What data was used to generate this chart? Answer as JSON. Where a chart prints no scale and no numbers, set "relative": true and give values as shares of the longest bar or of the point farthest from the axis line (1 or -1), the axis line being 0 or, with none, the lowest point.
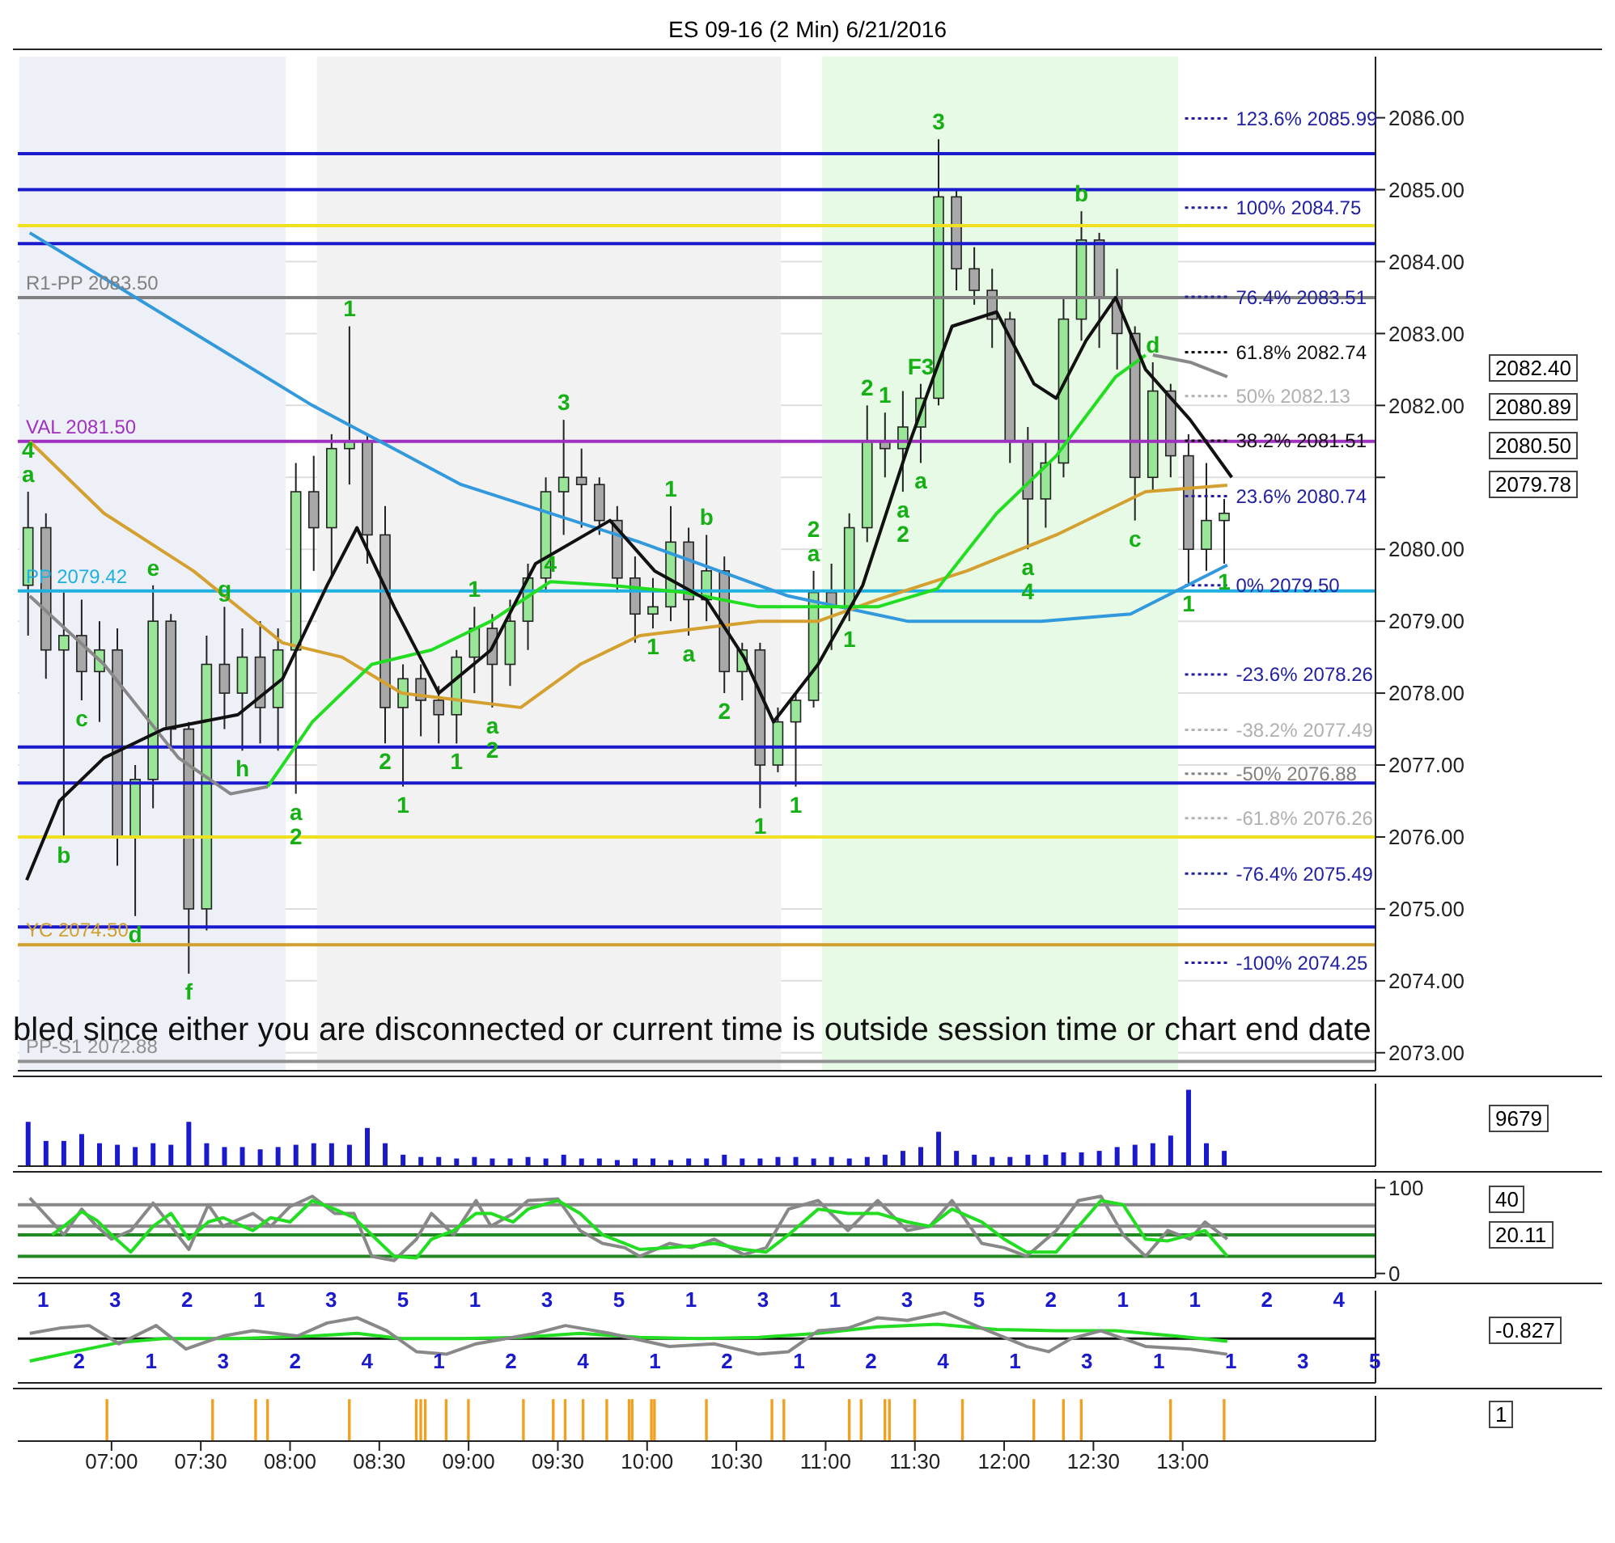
{
  "chart_data": [
    {
      "type": "candlestick",
      "title": "ES 09-16 (2 Min)  6/21/2016",
      "tick_labels": "y",
      "grid": "y",
      "xlim": [
        6.475,
        14.08
      ],
      "ylim": [
        2072.75,
        2086.85
      ],
      "yticks": [
        {
          "value": 2073,
          "label": "2073.00"
        },
        {
          "value": 2074,
          "label": "2074.00"
        },
        {
          "value": 2075,
          "label": "2075.00"
        },
        {
          "value": 2076,
          "label": "2076.00"
        },
        {
          "value": 2077,
          "label": "2077.00"
        },
        {
          "value": 2078,
          "label": "2078.00"
        },
        {
          "value": 2079,
          "label": "2079.00"
        },
        {
          "value": 2080,
          "label": "2080.00"
        },
        {
          "value": 2081,
          "label": null
        },
        {
          "value": 2082,
          "label": "2082.00"
        },
        {
          "value": 2083,
          "label": "2083.00"
        },
        {
          "value": 2084,
          "label": "2084.00"
        },
        {
          "value": 2085,
          "label": "2085.00"
        },
        {
          "value": 2086,
          "label": "2086.00"
        }
      ],
      "x": [
        6.533,
        6.633,
        6.733,
        6.833,
        6.933,
        7.033,
        7.133,
        7.233,
        7.333,
        7.433,
        7.533,
        7.633,
        7.733,
        7.833,
        7.933,
        8.033,
        8.133,
        8.233,
        8.333,
        8.433,
        8.533,
        8.633,
        8.733,
        8.833,
        8.933,
        9.033,
        9.133,
        9.233,
        9.333,
        9.433,
        9.533,
        9.633,
        9.733,
        9.833,
        9.933,
        10.033,
        10.133,
        10.233,
        10.333,
        10.433,
        10.533,
        10.633,
        10.733,
        10.833,
        10.933,
        11.033,
        11.133,
        11.233,
        11.333,
        11.433,
        11.533,
        11.633,
        11.733,
        11.833,
        11.933,
        12.033,
        12.133,
        12.233,
        12.333,
        12.433,
        12.533,
        12.633,
        12.733,
        12.833,
        12.933,
        13.033,
        13.133,
        13.233
      ],
      "ohlc": [
        [
          2079.5,
          2080.8,
          2078.8,
          2080.3
        ],
        [
          2080.3,
          2080.5,
          2078.2,
          2078.6
        ],
        [
          2078.6,
          2079.4,
          2076.0,
          2078.8
        ],
        [
          2078.8,
          2079.3,
          2077.9,
          2078.3
        ],
        [
          2078.3,
          2079.0,
          2077.6,
          2078.6
        ],
        [
          2078.6,
          2078.9,
          2075.6,
          2076.0
        ],
        [
          2076.0,
          2077.0,
          2074.9,
          2076.8
        ],
        [
          2076.8,
          2079.5,
          2076.4,
          2079.0
        ],
        [
          2079.0,
          2079.1,
          2077.2,
          2077.5
        ],
        [
          2077.5,
          2077.6,
          2074.1,
          2075.0
        ],
        [
          2075.0,
          2078.8,
          2074.7,
          2078.4
        ],
        [
          2078.4,
          2079.2,
          2077.5,
          2078.0
        ],
        [
          2078.0,
          2078.9,
          2077.2,
          2078.5
        ],
        [
          2078.5,
          2079.0,
          2077.3,
          2077.8
        ],
        [
          2077.8,
          2078.9,
          2077.2,
          2078.6
        ],
        [
          2078.6,
          2081.2,
          2076.6,
          2080.8
        ],
        [
          2080.8,
          2081.3,
          2079.7,
          2080.3
        ],
        [
          2080.3,
          2081.6,
          2079.6,
          2081.4
        ],
        [
          2081.4,
          2083.1,
          2080.9,
          2081.5
        ],
        [
          2081.5,
          2081.6,
          2079.8,
          2080.2
        ],
        [
          2080.2,
          2080.6,
          2077.3,
          2077.8
        ],
        [
          2077.8,
          2078.4,
          2076.7,
          2078.2
        ],
        [
          2078.2,
          2078.4,
          2077.4,
          2077.9
        ],
        [
          2077.9,
          2078.1,
          2077.3,
          2077.7
        ],
        [
          2077.7,
          2078.6,
          2077.3,
          2078.5
        ],
        [
          2078.5,
          2079.2,
          2078.0,
          2078.9
        ],
        [
          2078.9,
          2079.1,
          2077.8,
          2078.4
        ],
        [
          2078.4,
          2079.3,
          2078.1,
          2079.0
        ],
        [
          2079.0,
          2079.8,
          2078.6,
          2079.6
        ],
        [
          2079.6,
          2081.0,
          2079.4,
          2080.8
        ],
        [
          2080.8,
          2081.8,
          2080.2,
          2081.0
        ],
        [
          2081.0,
          2081.4,
          2080.3,
          2080.9
        ],
        [
          2080.9,
          2081.0,
          2080.2,
          2080.4
        ],
        [
          2080.4,
          2080.6,
          2079.4,
          2079.6
        ],
        [
          2079.6,
          2079.9,
          2078.7,
          2079.1
        ],
        [
          2079.1,
          2079.6,
          2078.9,
          2079.2
        ],
        [
          2079.2,
          2080.6,
          2079.0,
          2080.1
        ],
        [
          2080.1,
          2080.3,
          2078.8,
          2079.3
        ],
        [
          2079.3,
          2080.2,
          2079.0,
          2079.7
        ],
        [
          2079.7,
          2079.9,
          2078.0,
          2078.3
        ],
        [
          2078.3,
          2078.7,
          2077.9,
          2078.6
        ],
        [
          2078.6,
          2078.7,
          2076.4,
          2077.0
        ],
        [
          2077.0,
          2077.8,
          2076.9,
          2077.6
        ],
        [
          2077.6,
          2078.0,
          2076.7,
          2077.9
        ],
        [
          2077.9,
          2079.7,
          2077.8,
          2079.4
        ],
        [
          2079.4,
          2079.8,
          2078.6,
          2079.2
        ],
        [
          2079.2,
          2080.5,
          2079.0,
          2080.3
        ],
        [
          2080.3,
          2082.0,
          2080.1,
          2081.5
        ],
        [
          2081.5,
          2081.9,
          2081.0,
          2081.4
        ],
        [
          2081.4,
          2082.2,
          2080.8,
          2081.7
        ],
        [
          2081.7,
          2082.3,
          2081.2,
          2082.1
        ],
        [
          2082.1,
          2085.7,
          2082.0,
          2084.9
        ],
        [
          2084.9,
          2085.0,
          2083.6,
          2083.9
        ],
        [
          2083.9,
          2084.2,
          2083.4,
          2083.6
        ],
        [
          2083.6,
          2083.9,
          2082.8,
          2083.2
        ],
        [
          2083.2,
          2083.3,
          2081.2,
          2081.5
        ],
        [
          2081.5,
          2081.7,
          2080.0,
          2080.7
        ],
        [
          2080.7,
          2081.5,
          2080.3,
          2081.2
        ],
        [
          2081.2,
          2083.5,
          2081.0,
          2083.2
        ],
        [
          2083.2,
          2084.7,
          2082.9,
          2084.3
        ],
        [
          2084.3,
          2084.4,
          2082.8,
          2083.5
        ],
        [
          2083.5,
          2083.9,
          2082.5,
          2083.0
        ],
        [
          2083.0,
          2083.1,
          2080.4,
          2081.0
        ],
        [
          2081.0,
          2082.6,
          2080.8,
          2082.2
        ],
        [
          2082.2,
          2082.3,
          2081.0,
          2081.3
        ],
        [
          2081.3,
          2081.6,
          2079.5,
          2080.0
        ],
        [
          2080.0,
          2081.2,
          2079.7,
          2080.4
        ],
        [
          2080.4,
          2080.7,
          2079.8,
          2080.5
        ]
      ],
      "series": [
        {
          "type": "line",
          "color": "#3399dd",
          "x": [
            6.542,
            8.125,
            8.958,
            9.958,
            10.792,
            11.458,
            12.208,
            12.708,
            13.25
          ],
          "values": [
            2084.4,
            2082.0,
            2080.9,
            2080.1,
            2079.35,
            2079.0,
            2079.0,
            2079.1,
            2079.78
          ]
        },
        {
          "type": "line",
          "color": "#d4a030",
          "x": [
            6.542,
            6.958,
            7.458,
            7.958,
            8.292,
            8.625,
            8.958,
            9.292,
            9.625,
            9.958,
            10.292,
            10.625,
            10.958,
            11.292,
            11.792,
            12.292,
            12.792,
            13.25
          ],
          "values": [
            2081.5,
            2080.5,
            2079.7,
            2078.7,
            2078.5,
            2078.0,
            2077.9,
            2077.8,
            2078.4,
            2078.8,
            2078.9,
            2079.0,
            2079.0,
            2079.3,
            2079.7,
            2080.2,
            2080.8,
            2080.89
          ]
        },
        {
          "type": "line",
          "color": "#888888",
          "x": [
            6.542,
            6.958,
            7.375,
            7.667,
            7.875
          ],
          "values": [
            2079.35,
            2078.4,
            2077.1,
            2076.6,
            2076.7
          ]
        },
        {
          "type": "line",
          "color": "#888888",
          "x": [
            12.833,
            13.042,
            13.25
          ],
          "values": [
            2082.7,
            2082.6,
            2082.4
          ]
        },
        {
          "type": "line",
          "color": "#22dd22",
          "x": [
            7.875,
            8.125,
            8.458,
            8.792,
            9.125,
            9.458,
            9.792,
            10.208,
            10.625,
            10.958,
            11.292,
            11.625,
            11.958,
            12.292,
            12.625,
            12.792
          ],
          "values": [
            2076.7,
            2077.6,
            2078.4,
            2078.6,
            2079.0,
            2079.55,
            2079.5,
            2079.4,
            2079.2,
            2079.2,
            2079.2,
            2079.45,
            2080.5,
            2081.3,
            2082.4,
            2082.7
          ]
        },
        {
          "type": "line",
          "color": "#111111",
          "x": [
            6.525,
            6.708,
            6.958,
            7.292,
            7.708,
            7.958,
            8.208,
            8.375,
            8.583,
            8.833,
            9.125,
            9.375,
            9.792,
            10.042,
            10.333,
            10.542,
            10.708,
            10.958,
            11.208,
            11.458,
            11.708,
            11.958,
            12.167,
            12.292,
            12.458,
            12.625,
            12.792,
            13.042,
            13.275
          ],
          "values": [
            2075.4,
            2076.5,
            2077.1,
            2077.5,
            2077.7,
            2078.2,
            2079.5,
            2080.3,
            2079.2,
            2078.0,
            2078.6,
            2079.8,
            2080.4,
            2079.7,
            2079.3,
            2078.5,
            2077.6,
            2078.4,
            2079.5,
            2081.4,
            2083.1,
            2083.3,
            2082.3,
            2082.1,
            2082.9,
            2083.5,
            2082.5,
            2081.8,
            2081.0
          ]
        }
      ],
      "bands": [
        {
          "axis": "x",
          "from": 6.483,
          "to": 7.975,
          "color": "#eef0f8"
        },
        {
          "axis": "x",
          "from": 8.15,
          "to": 10.75,
          "color": "#f2f2f2"
        },
        {
          "axis": "x",
          "from": 10.98,
          "to": 12.975,
          "color": "#e6fae6"
        }
      ],
      "ref_lines": [
        {
          "axis": "y",
          "value": 2085.5,
          "color": "#1a1acc"
        },
        {
          "axis": "y",
          "value": 2085.0,
          "color": "#1a1acc"
        },
        {
          "axis": "y",
          "value": 2084.5,
          "color": "#f0e020"
        },
        {
          "axis": "y",
          "value": 2084.25,
          "color": "#1a1acc"
        },
        {
          "axis": "y",
          "value": 2083.5,
          "label": "R1-PP 2083.50",
          "color": "#808080"
        },
        {
          "axis": "y",
          "value": 2081.5,
          "label": "VAL 2081.50",
          "color": "#a030c0"
        },
        {
          "axis": "y",
          "value": 2079.42,
          "label": "PP 2079.42",
          "color": "#20b0e0"
        },
        {
          "axis": "y",
          "value": 2077.25,
          "color": "#1a1acc"
        },
        {
          "axis": "y",
          "value": 2076.75,
          "color": "#1a1acc"
        },
        {
          "axis": "y",
          "value": 2076.0,
          "color": "#f0e020"
        },
        {
          "axis": "y",
          "value": 2074.75,
          "color": "#1a1acc"
        },
        {
          "axis": "y",
          "value": 2074.5,
          "label": "YC 2074.50",
          "color": "#d0a030"
        },
        {
          "axis": "y",
          "value": 2072.88,
          "label": "PP-S1 2072.88",
          "color": "#909090"
        },
        {
          "axis": "y",
          "value": 2085.99,
          "label": "123.6%  2085.99",
          "color": "#2020a0",
          "line_style": "dotted"
        },
        {
          "axis": "y",
          "value": 2084.75,
          "label": "100%  2084.75",
          "color": "#2020a0",
          "line_style": "dotted"
        },
        {
          "axis": "y",
          "value": 2083.51,
          "label": "76.4%  2083.51",
          "color": "#2020a0",
          "line_style": "dotted"
        },
        {
          "axis": "y",
          "value": 2082.74,
          "label": "61.8%  2082.74",
          "color": "#111111",
          "line_style": "dotted"
        },
        {
          "axis": "y",
          "value": 2082.13,
          "label": "50%  2082.13",
          "color": "#b0b0b0",
          "line_style": "dotted"
        },
        {
          "axis": "y",
          "value": 2081.51,
          "label": "38.2%  2081.51",
          "color": "#111111",
          "line_style": "dotted"
        },
        {
          "axis": "y",
          "value": 2080.74,
          "label": "23.6%  2080.74",
          "color": "#2020a0",
          "line_style": "dotted"
        },
        {
          "axis": "y",
          "value": 2079.5,
          "label": "0%  2079.50",
          "color": "#2020a0",
          "line_style": "dotted"
        },
        {
          "axis": "y",
          "value": 2078.26,
          "label": "-23.6%  2078.26",
          "color": "#2020a0",
          "line_style": "dotted"
        },
        {
          "axis": "y",
          "value": 2077.49,
          "label": "-38.2%  2077.49",
          "color": "#b0b0b0",
          "line_style": "dotted"
        },
        {
          "axis": "y",
          "value": 2076.88,
          "label": "-50%  2076.88",
          "color": "#808080",
          "line_style": "dotted"
        },
        {
          "axis": "y",
          "value": 2076.26,
          "label": "-61.8%  2076.26",
          "color": "#b0b0b0",
          "line_style": "dotted"
        },
        {
          "axis": "y",
          "value": 2075.49,
          "label": "-76.4%  2075.49",
          "color": "#2020a0",
          "line_style": "dotted"
        },
        {
          "axis": "y",
          "value": 2074.25,
          "label": "-100%  2074.25",
          "color": "#2020a0",
          "line_style": "dotted"
        }
      ],
      "annotations": [
        "bled since either you are disconnected or current time is outside session time or chart end date",
        "2082.40",
        "2080.89",
        "2080.50",
        "2079.78",
        {
          "text": "a",
          "x": 6.533,
          "y": 2080.8
        },
        {
          "text": "4",
          "x": 6.533,
          "y": 2080.8
        },
        {
          "text": "b",
          "x": 6.733,
          "y": 2076.0
        },
        {
          "text": "c",
          "x": 6.833,
          "y": 2077.9
        },
        {
          "text": "d",
          "x": 7.133,
          "y": 2074.9
        },
        {
          "text": "e",
          "x": 7.233,
          "y": 2079.5
        },
        {
          "text": "f",
          "x": 7.433,
          "y": 2074.1
        },
        {
          "text": "g",
          "x": 7.633,
          "y": 2079.2
        },
        {
          "text": "h",
          "x": 7.733,
          "y": 2077.2
        },
        {
          "text": "a",
          "x": 8.033,
          "y": 2076.6
        },
        {
          "text": "2",
          "x": 8.033,
          "y": 2076.6
        },
        {
          "text": "1",
          "x": 8.333,
          "y": 2083.1
        },
        {
          "text": "2",
          "x": 8.533,
          "y": 2077.3
        },
        {
          "text": "1",
          "x": 8.633,
          "y": 2076.7
        },
        {
          "text": "1",
          "x": 8.933,
          "y": 2077.3
        },
        {
          "text": "1",
          "x": 9.033,
          "y": 2079.2
        },
        {
          "text": "a",
          "x": 9.133,
          "y": 2077.8
        },
        {
          "text": "2",
          "x": 9.133,
          "y": 2077.8
        },
        {
          "text": "3",
          "x": 9.533,
          "y": 2081.8
        },
        {
          "text": "4",
          "x": 9.458,
          "y": 2079.55
        },
        {
          "text": "1",
          "x": 10.033,
          "y": 2078.9
        },
        {
          "text": "1",
          "x": 10.133,
          "y": 2080.6
        },
        {
          "text": "a",
          "x": 10.233,
          "y": 2078.8
        },
        {
          "text": "b",
          "x": 10.333,
          "y": 2080.2
        },
        {
          "text": "2",
          "x": 10.433,
          "y": 2078.0
        },
        {
          "text": "1",
          "x": 10.633,
          "y": 2076.4
        },
        {
          "text": "1",
          "x": 10.833,
          "y": 2076.7
        },
        {
          "text": "a",
          "x": 10.933,
          "y": 2079.7
        },
        {
          "text": "2",
          "x": 10.933,
          "y": 2079.7
        },
        {
          "text": "1",
          "x": 11.133,
          "y": 2079.0
        },
        {
          "text": "2",
          "x": 11.233,
          "y": 2082.0
        },
        {
          "text": "1",
          "x": 11.333,
          "y": 2081.9
        },
        {
          "text": "a",
          "x": 11.433,
          "y": 2080.8
        },
        {
          "text": "2",
          "x": 11.433,
          "y": 2080.8
        },
        {
          "text": "F3",
          "x": 11.533,
          "y": 2082.3
        },
        {
          "text": "a",
          "x": 11.533,
          "y": 2081.2
        },
        {
          "text": "3",
          "x": 11.633,
          "y": 2085.7
        },
        {
          "text": "a",
          "x": 12.133,
          "y": 2080.0
        },
        {
          "text": "4",
          "x": 12.133,
          "y": 2080.0
        },
        {
          "text": "b",
          "x": 12.433,
          "y": 2084.7
        },
        {
          "text": "c",
          "x": 12.733,
          "y": 2080.4
        },
        {
          "text": "d",
          "x": 12.833,
          "y": 2082.6
        },
        {
          "text": "1",
          "x": 13.033,
          "y": 2079.5
        },
        {
          "text": "1",
          "x": 13.233,
          "y": 2079.8
        }
      ]
    },
    {
      "type": "bar",
      "relative": true,
      "tick_labels": false,
      "xlim": [
        6.475,
        14.08
      ],
      "color": "#1a1acc",
      "x": [
        6.533,
        6.633,
        6.733,
        6.833,
        6.933,
        7.033,
        7.133,
        7.233,
        7.333,
        7.433,
        7.533,
        7.633,
        7.733,
        7.833,
        7.933,
        8.033,
        8.133,
        8.233,
        8.333,
        8.433,
        8.533,
        8.633,
        8.733,
        8.833,
        8.933,
        9.033,
        9.133,
        9.233,
        9.333,
        9.433,
        9.533,
        9.633,
        9.733,
        9.833,
        9.933,
        10.033,
        10.133,
        10.233,
        10.333,
        10.433,
        10.533,
        10.633,
        10.733,
        10.833,
        10.933,
        11.033,
        11.133,
        11.233,
        11.333,
        11.433,
        11.533,
        11.633,
        11.733,
        11.833,
        11.933,
        12.033,
        12.133,
        12.233,
        12.333,
        12.433,
        12.533,
        12.633,
        12.733,
        12.833,
        12.933,
        13.033,
        13.133,
        13.233
      ],
      "values": [
        0.58,
        0.33,
        0.33,
        0.42,
        0.3,
        0.28,
        0.25,
        0.3,
        0.28,
        0.58,
        0.3,
        0.25,
        0.25,
        0.22,
        0.25,
        0.28,
        0.3,
        0.3,
        0.28,
        0.5,
        0.3,
        0.15,
        0.12,
        0.12,
        0.1,
        0.12,
        0.1,
        0.1,
        0.12,
        0.1,
        0.15,
        0.1,
        0.1,
        0.08,
        0.1,
        0.1,
        0.08,
        0.1,
        0.1,
        0.15,
        0.1,
        0.1,
        0.12,
        0.12,
        0.1,
        0.12,
        0.1,
        0.12,
        0.15,
        0.2,
        0.25,
        0.45,
        0.2,
        0.15,
        0.12,
        0.12,
        0.15,
        0.15,
        0.18,
        0.18,
        0.2,
        0.25,
        0.28,
        0.3,
        0.4,
        1.0,
        0.3,
        0.2
      ],
      "annotations": [
        "9679"
      ]
    },
    {
      "type": "line",
      "tick_labels": "y",
      "xlim": [
        6.475,
        14.08
      ],
      "ylim": [
        -5,
        110
      ],
      "yticks": [
        0,
        100
      ],
      "series": [
        {
          "color": "#888888",
          "x": [
            6.542,
            6.667,
            6.733,
            6.833,
            6.917,
            7.0,
            7.108,
            7.233,
            7.333,
            7.433,
            7.542,
            7.625,
            7.792,
            7.892,
            8.0,
            8.125,
            8.25,
            8.358,
            8.458,
            8.583,
            8.708,
            8.792,
            8.917,
            9.042,
            9.125,
            9.25,
            9.333,
            9.5,
            9.625,
            9.75,
            9.875,
            9.958,
            10.125,
            10.25,
            10.375,
            10.542,
            10.667,
            10.792,
            10.958,
            11.125,
            11.292,
            11.458,
            11.583,
            11.708,
            11.875,
            12.0,
            12.125,
            12.292,
            12.417,
            12.542,
            12.667,
            12.792,
            12.917,
            13.042,
            13.125,
            13.25
          ],
          "values": [
            88,
            60,
            45,
            75,
            55,
            40,
            50,
            82,
            55,
            28,
            80,
            55,
            70,
            55,
            78,
            90,
            70,
            70,
            20,
            15,
            40,
            70,
            45,
            85,
            55,
            70,
            85,
            87,
            50,
            35,
            30,
            20,
            35,
            30,
            40,
            22,
            30,
            75,
            85,
            50,
            85,
            50,
            55,
            85,
            35,
            30,
            20,
            50,
            85,
            90,
            45,
            20,
            50,
            40,
            60,
            40
          ]
        },
        {
          "color": "#22dd22",
          "x": [
            6.667,
            6.733,
            6.833,
            6.917,
            7.0,
            7.108,
            7.233,
            7.333,
            7.433,
            7.542,
            7.625,
            7.792,
            7.892,
            8.0,
            8.125,
            8.25,
            8.358,
            8.458,
            8.583,
            8.708,
            8.792,
            8.917,
            9.042,
            9.125,
            9.25,
            9.333,
            9.5,
            9.625,
            9.75,
            9.875,
            9.958,
            10.125,
            10.25,
            10.375,
            10.542,
            10.667,
            10.792,
            10.958,
            11.125,
            11.292,
            11.458,
            11.583,
            11.708,
            11.875,
            12.0,
            12.125,
            12.292,
            12.417,
            12.542,
            12.667,
            12.792,
            12.917,
            13.042,
            13.125,
            13.25
          ],
          "values": [
            45,
            55,
            72,
            62,
            45,
            25,
            55,
            70,
            40,
            60,
            65,
            50,
            65,
            60,
            85,
            75,
            65,
            45,
            20,
            18,
            40,
            50,
            70,
            70,
            60,
            75,
            85,
            70,
            45,
            35,
            28,
            30,
            32,
            35,
            28,
            25,
            45,
            75,
            70,
            70,
            60,
            55,
            75,
            60,
            40,
            25,
            25,
            55,
            85,
            80,
            40,
            38,
            45,
            50,
            20.11
          ]
        }
      ],
      "ref_lines": [
        {
          "axis": "y",
          "value": 80,
          "color": "#888888"
        },
        {
          "axis": "y",
          "value": 55,
          "color": "#888888"
        },
        {
          "axis": "y",
          "value": 45,
          "color": "#228822"
        },
        {
          "axis": "y",
          "value": 20,
          "color": "#228822"
        }
      ],
      "annotations": [
        "40",
        "20.11"
      ]
    },
    {
      "type": "line",
      "relative": true,
      "tick_labels": false,
      "xlim": [
        6.475,
        14.08
      ],
      "series": [
        {
          "color": "#22dd22",
          "x": [
            6.542,
            6.792,
            7.042,
            7.292,
            7.708,
            8.125,
            8.375,
            8.625,
            8.958,
            9.292,
            9.625,
            9.958,
            10.292,
            10.625,
            10.958,
            11.292,
            11.625,
            11.958,
            12.292,
            12.625,
            12.958,
            13.25
          ],
          "values": [
            -0.86,
            -0.5,
            -0.15,
            0,
            0,
            0.1,
            0.2,
            0,
            0,
            0.05,
            0.2,
            0.05,
            0,
            0.05,
            0.2,
            0.45,
            0.55,
            0.35,
            0.3,
            0.3,
            0.1,
            -0.1
          ]
        },
        {
          "color": "#888888",
          "x": [
            6.542,
            6.708,
            6.875,
            7.042,
            7.25,
            7.417,
            7.625,
            7.792,
            8.042,
            8.208,
            8.375,
            8.542,
            8.708,
            8.875,
            9.042,
            9.375,
            9.542,
            9.792,
            10.125,
            10.375,
            10.625,
            10.792,
            10.958,
            11.125,
            11.292,
            11.458,
            11.667,
            11.875,
            12.125,
            12.25,
            12.375,
            12.542,
            12.792,
            13.042,
            13.25
          ],
          "values": [
            0.2,
            0.4,
            0.5,
            -0.2,
            0.5,
            -0.4,
            0.1,
            0.3,
            0.1,
            0.6,
            0.8,
            0.3,
            -0.5,
            -0.6,
            -0.2,
            0.2,
            0.5,
            0.2,
            -0.3,
            -0.2,
            -0.6,
            -0.5,
            0.3,
            0.4,
            0.8,
            0.7,
            1.0,
            0.4,
            -0.3,
            -0.5,
            0,
            0.3,
            -0.3,
            -0.4,
            -0.6
          ]
        }
      ],
      "annotations": [
        "-0.827",
        "1",
        "2",
        "3",
        "1",
        "2",
        "3",
        "1",
        "2",
        "3",
        "4",
        "5",
        "1",
        "1",
        "2",
        "3",
        "4",
        "5",
        "1",
        "1",
        "2",
        "3",
        "1",
        "1",
        "2",
        "3",
        "4",
        "5",
        "1",
        "2",
        "3",
        "1",
        "1",
        "1",
        "1",
        "2",
        "3",
        "4",
        "5"
      ]
    },
    {
      "type": "bar",
      "relative": true,
      "tick_labels": "x",
      "xlim": [
        6.475,
        14.08
      ],
      "color": "#f0a020",
      "xticks": [
        {
          "value": 7,
          "label": "07:00"
        },
        {
          "value": 7.5,
          "label": "07:30"
        },
        {
          "value": 8,
          "label": "08:00"
        },
        {
          "value": 8.5,
          "label": "08:30"
        },
        {
          "value": 9,
          "label": "09:00"
        },
        {
          "value": 9.5,
          "label": "09:30"
        },
        {
          "value": 10,
          "label": "10:00"
        },
        {
          "value": 10.5,
          "label": "10:30"
        },
        {
          "value": 11,
          "label": "11:00"
        },
        {
          "value": 11.5,
          "label": "11:30"
        },
        {
          "value": 12,
          "label": "12:00"
        },
        {
          "value": 12.5,
          "label": "12:30"
        },
        {
          "value": 13,
          "label": "13:00"
        }
      ],
      "x": [
        6.975,
        7.567,
        7.808,
        7.875,
        8.333,
        8.708,
        8.733,
        8.758,
        8.875,
        9.0,
        9.308,
        9.475,
        9.542,
        9.642,
        9.775,
        9.9,
        9.917,
        10.025,
        10.042,
        10.333,
        10.7,
        10.767,
        11.133,
        11.2,
        11.333,
        11.358,
        11.5,
        11.767,
        12.167,
        12.333,
        12.433,
        12.933,
        13.233
      ],
      "values": [
        1,
        1,
        1,
        1,
        1,
        1,
        1,
        1,
        1,
        1,
        1,
        1,
        1,
        1,
        1,
        1,
        1,
        1,
        1,
        1,
        1,
        1,
        1,
        1,
        1,
        1,
        1,
        1,
        1,
        1,
        1,
        1,
        1
      ],
      "annotations": [
        "1"
      ]
    }
  ]
}
